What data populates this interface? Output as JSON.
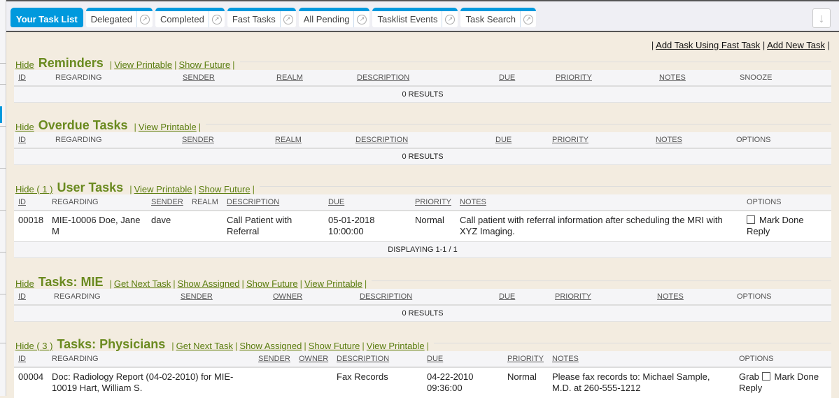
{
  "tabs": [
    {
      "label": "Your Task List",
      "active": true
    },
    {
      "label": "Delegated"
    },
    {
      "label": "Completed"
    },
    {
      "label": "Fast Tasks"
    },
    {
      "label": "All Pending"
    },
    {
      "label": "Tasklist Events"
    },
    {
      "label": "Task Search"
    }
  ],
  "top_links": {
    "fast_task": "Add Task Using Fast Task",
    "new_task": "Add New Task"
  },
  "sections": [
    {
      "hide": "Hide",
      "title": "Reminders",
      "links": [
        "View Printable",
        "Show Future"
      ],
      "columns": [
        "ID",
        "REGARDING",
        "SENDER",
        "REALM",
        "DESCRIPTION",
        "DUE",
        "PRIORITY",
        "NOTES",
        "SNOOZE"
      ],
      "underlined": [
        1,
        0,
        1,
        1,
        1,
        1,
        1,
        1,
        0
      ],
      "rows": [],
      "footer": "0 RESULTS"
    },
    {
      "hide": "Hide",
      "title": "Overdue Tasks",
      "links": [
        "View Printable"
      ],
      "columns": [
        "ID",
        "REGARDING",
        "SENDER",
        "REALM",
        "DESCRIPTION",
        "DUE",
        "PRIORITY",
        "NOTES",
        "OPTIONS"
      ],
      "underlined": [
        1,
        0,
        1,
        1,
        1,
        1,
        1,
        1,
        0
      ],
      "rows": [],
      "footer": "0 RESULTS"
    },
    {
      "hide": "Hide ( 1 )",
      "title": "User Tasks",
      "links": [
        "View Printable",
        "Show Future"
      ],
      "columns": [
        "ID",
        "REGARDING",
        "SENDER",
        "REALM",
        "DESCRIPTION",
        "DUE",
        "PRIORITY",
        "NOTES",
        "OPTIONS"
      ],
      "underlined": [
        1,
        0,
        1,
        0,
        1,
        1,
        1,
        1,
        0
      ],
      "rows": [
        {
          "id": "00018",
          "regarding": "MIE-10006 Doe, Jane M",
          "sender": "dave",
          "realm": "",
          "description": "Call Patient with Referral",
          "due": "05-01-2018 10:00:00",
          "priority": "Normal",
          "notes": "Call patient with referral information after scheduling the MRI with XYZ Imaging.",
          "options": {
            "grab": "",
            "mark_done": "Mark Done",
            "reply": "Reply"
          }
        }
      ],
      "footer": "DISPLAYING 1-1 / 1"
    },
    {
      "hide": "Hide",
      "title": "Tasks: MIE",
      "links": [
        "Get Next Task",
        "Show Assigned",
        "Show Future",
        "View Printable"
      ],
      "columns": [
        "ID",
        "REGARDING",
        "SENDER",
        "OWNER",
        "DESCRIPTION",
        "DUE",
        "PRIORITY",
        "NOTES",
        "OPTIONS"
      ],
      "underlined": [
        1,
        0,
        1,
        1,
        1,
        1,
        1,
        1,
        0
      ],
      "rows": [],
      "footer": "0 RESULTS"
    },
    {
      "hide": "Hide ( 3 )",
      "title": "Tasks: Physicians",
      "links": [
        "Get Next Task",
        "Show Assigned",
        "Show Future",
        "View Printable"
      ],
      "columns": [
        "ID",
        "REGARDING",
        "SENDER",
        "OWNER",
        "DESCRIPTION",
        "DUE",
        "PRIORITY",
        "NOTES",
        "OPTIONS"
      ],
      "underlined": [
        1,
        0,
        1,
        1,
        1,
        1,
        1,
        1,
        0
      ],
      "rows": [
        {
          "id": "00004",
          "regarding": "Doc: Radiology Report (04-02-2010) for MIE-10019 Hart, William S.",
          "sender": "",
          "owner": "",
          "description": "Fax Records",
          "due": "04-22-2010 09:36:00",
          "priority": "Normal",
          "notes": "Please fax records to: Michael Sample, M.D. at 260-555-1212",
          "options": {
            "grab": "Grab",
            "mark_done": "Mark Done",
            "reply": "Reply"
          }
        }
      ],
      "footer": ""
    }
  ]
}
